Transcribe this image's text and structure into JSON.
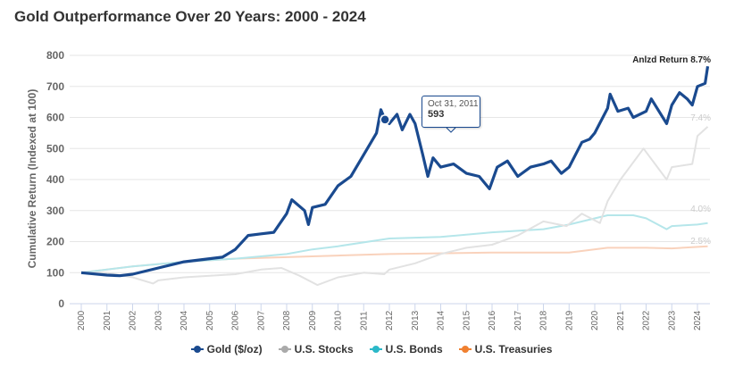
{
  "chart_data": {
    "type": "line",
    "title": "Gold Outperformance Over 20 Years: 2000 - 2024",
    "ylabel": "Cumulative Return (Indexed at 100)",
    "xlabel": "",
    "ylim": [
      0,
      800
    ],
    "yticks": [
      0,
      100,
      200,
      300,
      400,
      500,
      600,
      700,
      800
    ],
    "xlim": [
      2000,
      2024.5
    ],
    "xticks": [
      "2000",
      "2001",
      "2002",
      "2003",
      "2004",
      "2005",
      "2006",
      "2007",
      "2008",
      "2009",
      "2010",
      "2011",
      "2012",
      "2013",
      "2014",
      "2015",
      "2016",
      "2017",
      "2018",
      "2019",
      "2020",
      "2021",
      "2022",
      "2023",
      "2024"
    ],
    "grid": true,
    "legend": "bottom",
    "series": [
      {
        "name": "Gold ($/oz)",
        "color": "#1a4a8f",
        "annotation": "Anlzd Return 8.7%",
        "x": [
          2000,
          2001,
          2001.5,
          2002,
          2003,
          2004,
          2005,
          2005.5,
          2006,
          2006.5,
          2007,
          2007.5,
          2008,
          2008.2,
          2008.7,
          2008.85,
          2009,
          2009.5,
          2010,
          2010.5,
          2011,
          2011.5,
          2011.67,
          2011.83,
          2012,
          2012.3,
          2012.5,
          2012.8,
          2013,
          2013.3,
          2013.5,
          2013.7,
          2014,
          2014.5,
          2015,
          2015.5,
          2015.9,
          2016.2,
          2016.6,
          2017,
          2017.5,
          2018,
          2018.3,
          2018.7,
          2019,
          2019.5,
          2019.8,
          2020,
          2020.5,
          2020.6,
          2020.9,
          2021.3,
          2021.5,
          2022,
          2022.2,
          2022.8,
          2023,
          2023.3,
          2023.6,
          2023.8,
          2024,
          2024.3,
          2024.4
        ],
        "y": [
          100,
          92,
          90,
          95,
          115,
          135,
          145,
          150,
          175,
          220,
          225,
          230,
          290,
          335,
          300,
          255,
          310,
          320,
          380,
          410,
          480,
          550,
          625,
          593,
          580,
          610,
          560,
          610,
          580,
          480,
          410,
          470,
          440,
          450,
          420,
          410,
          370,
          440,
          460,
          410,
          440,
          450,
          460,
          420,
          440,
          520,
          530,
          550,
          630,
          675,
          620,
          630,
          600,
          620,
          660,
          580,
          640,
          680,
          660,
          640,
          700,
          710,
          765
        ]
      },
      {
        "name": "U.S. Stocks",
        "color": "#bbbbbb",
        "line_color": "#e2e2e2",
        "marker_color": "#aaaaaa",
        "annotation": "7.4%",
        "x": [
          2000,
          2001,
          2002,
          2002.8,
          2003,
          2004,
          2005,
          2006,
          2007,
          2007.8,
          2008.5,
          2009.2,
          2010,
          2011,
          2011.8,
          2012,
          2013,
          2014,
          2015,
          2016,
          2017,
          2018,
          2018.9,
          2019.5,
          2020.2,
          2020.5,
          2021,
          2021.9,
          2022.8,
          2023,
          2023.8,
          2024,
          2024.4
        ],
        "y": [
          100,
          100,
          85,
          65,
          75,
          85,
          90,
          95,
          110,
          115,
          90,
          60,
          85,
          100,
          95,
          110,
          130,
          160,
          180,
          190,
          220,
          265,
          250,
          290,
          260,
          330,
          400,
          500,
          400,
          440,
          450,
          540,
          570
        ]
      },
      {
        "name": "U.S. Bonds",
        "color": "#2bb8c8",
        "line_color": "#b5e6ea",
        "marker_color": "#2bb8c8",
        "annotation": "4.0%",
        "x": [
          2000,
          2002,
          2004,
          2006,
          2008,
          2009,
          2010,
          2012,
          2014,
          2016,
          2018,
          2019,
          2020.5,
          2021.5,
          2022,
          2022.8,
          2023,
          2024,
          2024.4
        ],
        "y": [
          100,
          120,
          135,
          145,
          160,
          175,
          185,
          210,
          215,
          230,
          240,
          255,
          285,
          285,
          275,
          240,
          250,
          255,
          260
        ]
      },
      {
        "name": "U.S. Treasuries",
        "color": "#f08030",
        "line_color": "#f9d2bc",
        "marker_color": "#f08030",
        "annotation": "2.5%",
        "x": [
          2000,
          2002,
          2004,
          2006,
          2008,
          2010,
          2012,
          2016,
          2019,
          2020.5,
          2022,
          2023,
          2024.4
        ],
        "y": [
          100,
          120,
          135,
          145,
          150,
          155,
          160,
          165,
          165,
          180,
          180,
          178,
          185
        ]
      }
    ],
    "tooltip": {
      "date": "Oct 31, 2011",
      "value": "593",
      "x": 2011.83,
      "y": 593
    }
  }
}
